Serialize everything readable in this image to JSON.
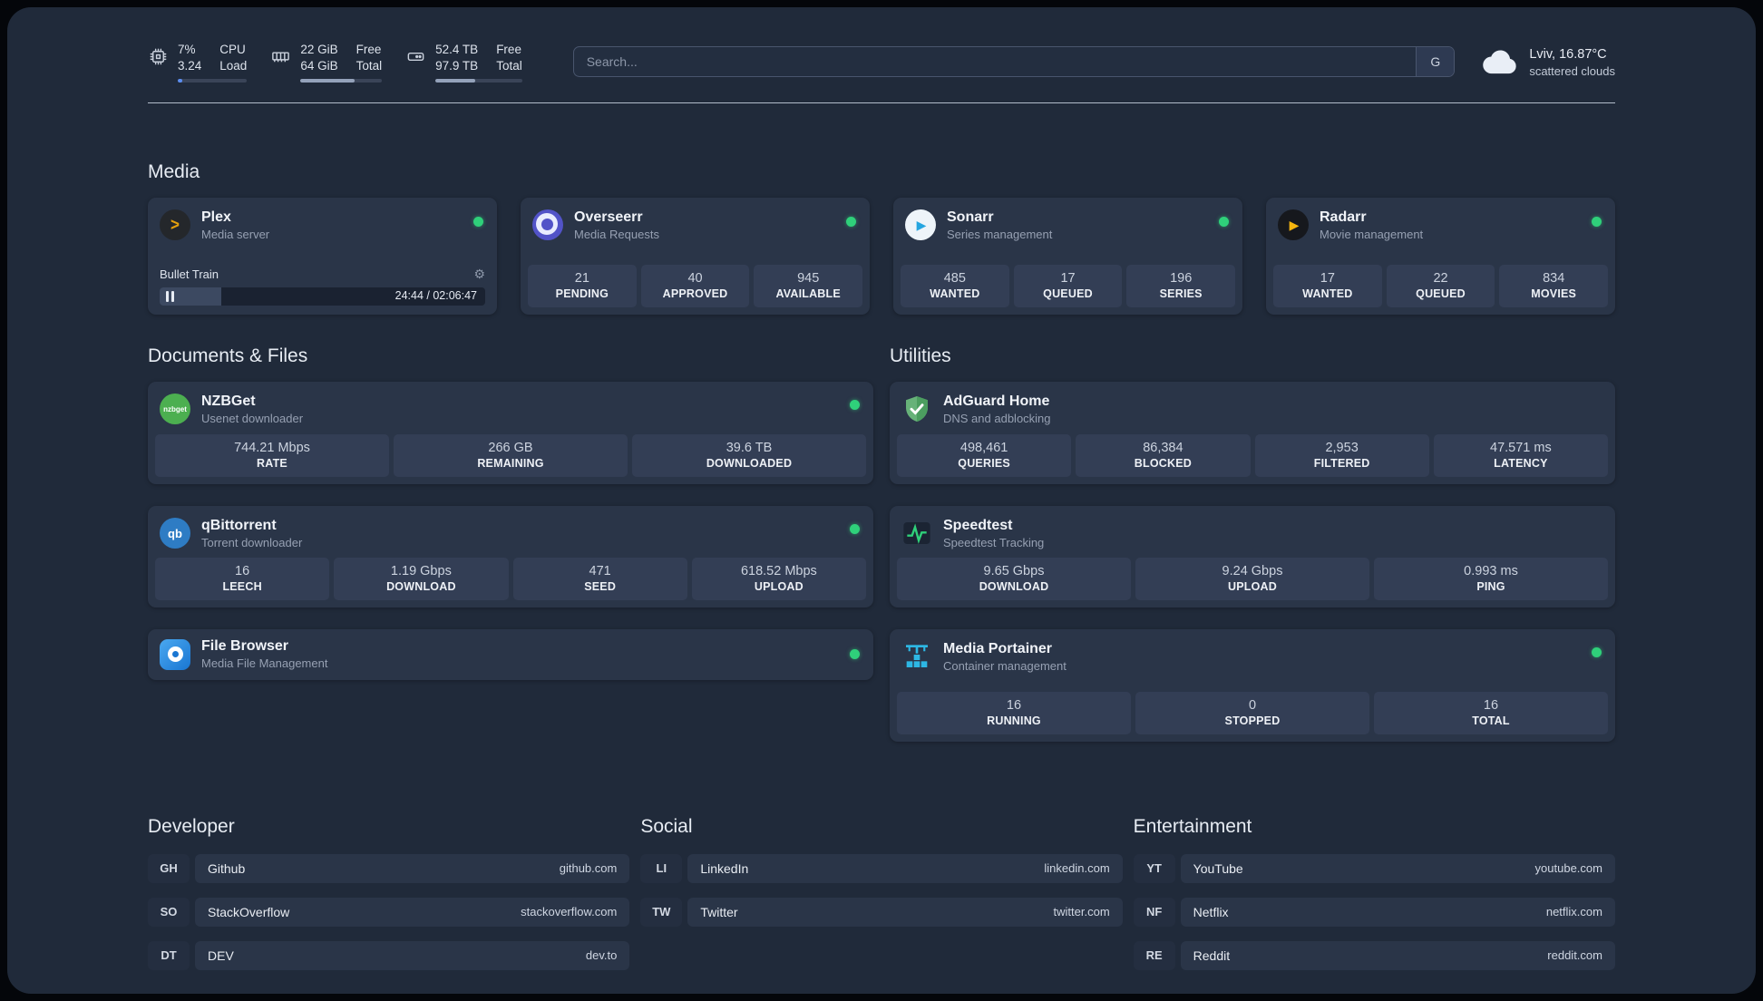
{
  "colors": {
    "status_online": "#2fd07a",
    "meter_fill": "#94a2ba",
    "cpu_bar": "#5b8def",
    "plex_amber": "#e5a00d",
    "overseerr_purple": "#5253c8",
    "sonarr_blue": "#25a5e0",
    "radarr_yellow": "#f6b50e",
    "nzbget_green": "#4caf50",
    "qbittorrent_blue": "#2e7cc4",
    "adguard_green": "#67b279",
    "speedtest_green": "#2fd07a",
    "portainer_blue": "#2db7e4"
  },
  "header": {
    "cpu": {
      "usage": "7%",
      "load": "3.24",
      "label_top": "CPU",
      "label_bottom": "Load",
      "bar_percent": 7
    },
    "memory": {
      "free": "22 GiB",
      "total": "64 GiB",
      "label_top": "Free",
      "label_bottom": "Total",
      "bar_percent": 66
    },
    "storage": {
      "free": "52.4 TB",
      "total": "97.9 TB",
      "label_top": "Free",
      "label_bottom": "Total",
      "bar_percent": 46
    },
    "search": {
      "placeholder": "Search...",
      "engine_button": "G"
    },
    "weather": {
      "location": "Lviv, 16.87°C",
      "condition": "scattered clouds"
    }
  },
  "media": {
    "title": "Media",
    "cards": [
      {
        "name": "Plex",
        "subtitle": "Media server",
        "online": true,
        "player": {
          "track": "Bullet Train",
          "time": "24:44 / 02:06:47",
          "progress_percent": 19
        }
      },
      {
        "name": "Overseerr",
        "subtitle": "Media Requests",
        "online": true,
        "stats": [
          {
            "value": "21",
            "label": "PENDING"
          },
          {
            "value": "40",
            "label": "APPROVED"
          },
          {
            "value": "945",
            "label": "AVAILABLE"
          }
        ]
      },
      {
        "name": "Sonarr",
        "subtitle": "Series management",
        "online": true,
        "stats": [
          {
            "value": "485",
            "label": "WANTED"
          },
          {
            "value": "17",
            "label": "QUEUED"
          },
          {
            "value": "196",
            "label": "SERIES"
          }
        ]
      },
      {
        "name": "Radarr",
        "subtitle": "Movie management",
        "online": true,
        "stats": [
          {
            "value": "17",
            "label": "WANTED"
          },
          {
            "value": "22",
            "label": "QUEUED"
          },
          {
            "value": "834",
            "label": "MOVIES"
          }
        ]
      }
    ]
  },
  "documents_files": {
    "title": "Documents & Files",
    "cards": [
      {
        "name": "NZBGet",
        "subtitle": "Usenet downloader",
        "icon_text": "nzbget",
        "online": true,
        "stats": [
          {
            "value": "744.21 Mbps",
            "label": "RATE"
          },
          {
            "value": "266 GB",
            "label": "REMAINING"
          },
          {
            "value": "39.6 TB",
            "label": "DOWNLOADED"
          }
        ]
      },
      {
        "name": "qBittorrent",
        "subtitle": "Torrent downloader",
        "icon_text": "qb",
        "online": true,
        "stats": [
          {
            "value": "16",
            "label": "LEECH"
          },
          {
            "value": "1.19 Gbps",
            "label": "DOWNLOAD"
          },
          {
            "value": "471",
            "label": "SEED"
          },
          {
            "value": "618.52 Mbps",
            "label": "UPLOAD"
          }
        ]
      },
      {
        "name": "File Browser",
        "subtitle": "Media File Management",
        "online": true,
        "stats": []
      }
    ]
  },
  "utilities": {
    "title": "Utilities",
    "cards": [
      {
        "name": "AdGuard Home",
        "subtitle": "DNS and adblocking",
        "stats": [
          {
            "value": "498,461",
            "label": "QUERIES"
          },
          {
            "value": "86,384",
            "label": "BLOCKED"
          },
          {
            "value": "2,953",
            "label": "FILTERED"
          },
          {
            "value": "47.571 ms",
            "label": "LATENCY"
          }
        ]
      },
      {
        "name": "Speedtest",
        "subtitle": "Speedtest Tracking",
        "stats": [
          {
            "value": "9.65 Gbps",
            "label": "DOWNLOAD"
          },
          {
            "value": "9.24 Gbps",
            "label": "UPLOAD"
          },
          {
            "value": "0.993 ms",
            "label": "PING"
          }
        ]
      },
      {
        "name": "Media Portainer",
        "subtitle": "Container management",
        "online": true,
        "stats": [
          {
            "value": "16",
            "label": "RUNNING"
          },
          {
            "value": "0",
            "label": "STOPPED"
          },
          {
            "value": "16",
            "label": "TOTAL"
          }
        ]
      }
    ]
  },
  "bookmarks": [
    {
      "title": "Developer",
      "items": [
        {
          "abbr": "GH",
          "name": "Github",
          "url": "github.com"
        },
        {
          "abbr": "SO",
          "name": "StackOverflow",
          "url": "stackoverflow.com"
        },
        {
          "abbr": "DT",
          "name": "DEV",
          "url": "dev.to"
        }
      ]
    },
    {
      "title": "Social",
      "items": [
        {
          "abbr": "LI",
          "name": "LinkedIn",
          "url": "linkedin.com"
        },
        {
          "abbr": "TW",
          "name": "Twitter",
          "url": "twitter.com"
        }
      ]
    },
    {
      "title": "Entertainment",
      "items": [
        {
          "abbr": "YT",
          "name": "YouTube",
          "url": "youtube.com"
        },
        {
          "abbr": "NF",
          "name": "Netflix",
          "url": "netflix.com"
        },
        {
          "abbr": "RE",
          "name": "Reddit",
          "url": "reddit.com"
        }
      ]
    }
  ]
}
